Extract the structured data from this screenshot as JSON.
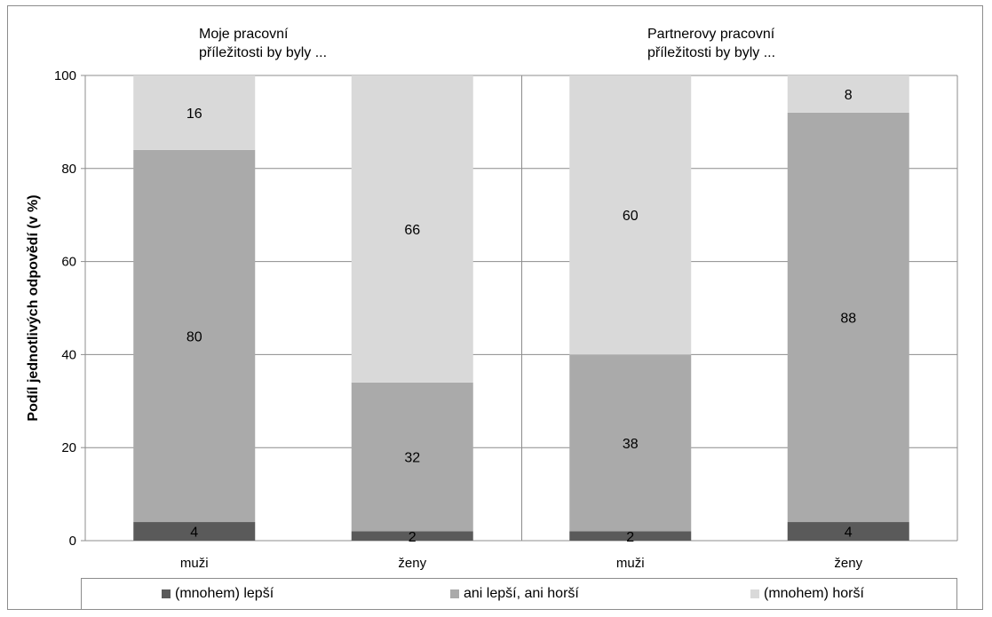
{
  "chart_data": {
    "type": "bar",
    "stacked": true,
    "ylabel": "Podíl jednotlivých odpovědí (v %)",
    "ylim": [
      0,
      100
    ],
    "yticks": [
      0,
      20,
      40,
      60,
      80,
      100
    ],
    "grid": true,
    "groups": [
      {
        "title_line1": "Moje pracovní",
        "title_line2": "příležitosti by byly ...",
        "categories": [
          "muži",
          "ženy"
        ]
      },
      {
        "title_line1": "Partnerovy pracovní",
        "title_line2": "příležitosti by byly ...",
        "categories": [
          "muži",
          "ženy"
        ]
      }
    ],
    "categories": [
      "muži",
      "ženy",
      "muži",
      "ženy"
    ],
    "series": [
      {
        "name": "(mnohem) lepší",
        "color": "#5a5a5a",
        "values": [
          4,
          2,
          2,
          4
        ]
      },
      {
        "name": "ani lepší, ani horší",
        "color": "#aaaaaa",
        "values": [
          80,
          32,
          38,
          88
        ]
      },
      {
        "name": "(mnohem) horší",
        "color": "#d9d9d9",
        "values": [
          16,
          66,
          60,
          8
        ]
      }
    ],
    "legend_position": "bottom"
  }
}
